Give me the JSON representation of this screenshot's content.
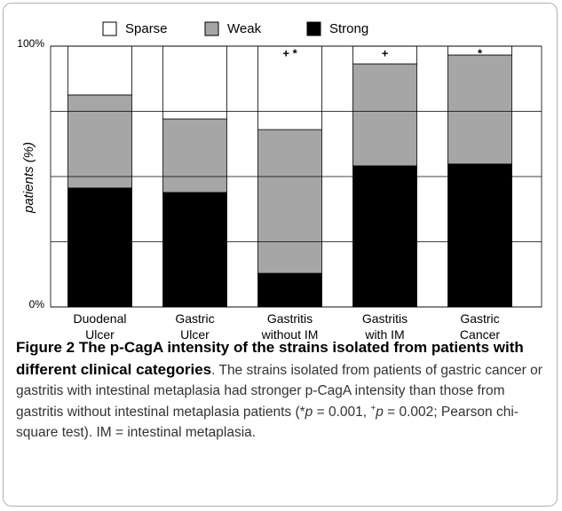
{
  "chart_data": {
    "type": "stacked_bar",
    "categories": [
      "Duodenal\nUlcer",
      "Gastric\nUlcer",
      "Gastritis\nwithout IM",
      "Gastritis\nwith IM",
      "Gastric\nCancer"
    ],
    "series": [
      {
        "name": "Sparse",
        "color": "#ffffff",
        "values": [
          18.7,
          27.9,
          32.0,
          6.8,
          3.4
        ]
      },
      {
        "name": "Weak",
        "color": "#a6a6a6",
        "values": [
          35.7,
          28.2,
          55.1,
          39.1,
          41.8
        ]
      },
      {
        "name": "Strong",
        "color": "#000000",
        "values": [
          45.6,
          43.9,
          12.9,
          54.1,
          54.8
        ]
      }
    ],
    "annotations": [
      null,
      null,
      "+ *",
      "+",
      "*"
    ],
    "ylabel": "patients (%)",
    "ylim": [
      0,
      100
    ],
    "yticks": [
      {
        "value": 0,
        "label": "0%"
      },
      {
        "value": 100,
        "label": "100%"
      }
    ],
    "gridlines": [
      25,
      50,
      75
    ],
    "grid": true
  },
  "caption": {
    "title": "Figure 2 The p-CagA intensity of the strains isolated from patients with different clinical categories",
    "body": [
      ". The strains isolated from patients of gastric cancer or gastritis with intestinal metaplasia had stronger p-CagA intensity than those from gastritis without intestinal metaplasia patients (*",
      "p",
      " = 0.001, ",
      "+",
      "p",
      " = 0.002; Pearson chi-square test). IM = intestinal metaplasia."
    ]
  }
}
